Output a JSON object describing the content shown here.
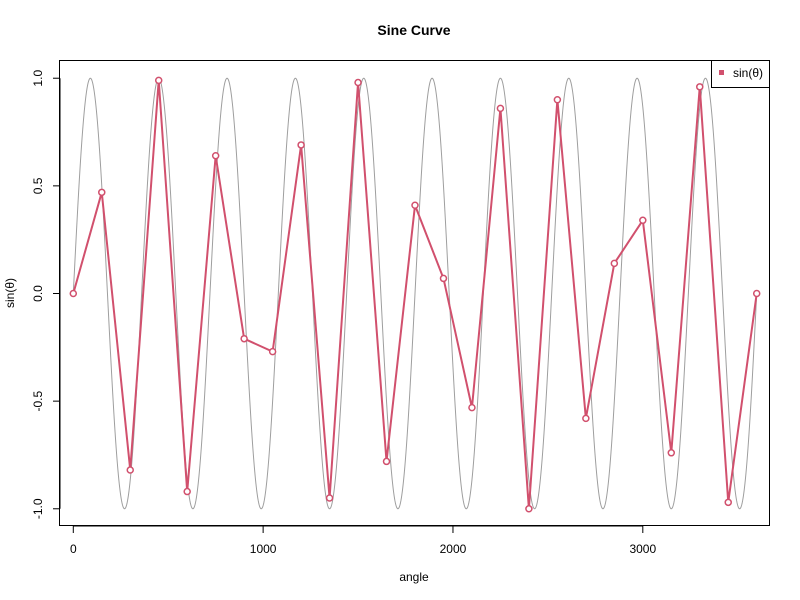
{
  "chart_data": {
    "type": "line",
    "title": "Sine Curve",
    "xlabel": "angle",
    "ylabel": "sin(θ)",
    "xlim": [
      -70,
      3670
    ],
    "ylim": [
      -1.08,
      1.08
    ],
    "x_ticks": [
      0,
      1000,
      2000,
      3000
    ],
    "x_tick_labels": [
      "0",
      "1000",
      "2000",
      "3000"
    ],
    "y_ticks": [
      -1.0,
      -0.5,
      0.0,
      0.5,
      1.0
    ],
    "y_tick_labels": [
      "-1.0",
      "-0.5",
      "0.0",
      "0.5",
      "1.0"
    ],
    "grid": false,
    "legend_position": "top-right",
    "colors": {
      "series": "#d1506d",
      "reference": "#9e9e9e"
    },
    "reference_curve": {
      "function": "sin",
      "x_range": [
        0,
        3600
      ]
    },
    "series": [
      {
        "name": "sin(θ)",
        "x": [
          0,
          150,
          300,
          450,
          600,
          750,
          900,
          1050,
          1200,
          1350,
          1500,
          1650,
          1800,
          1950,
          2100,
          2250,
          2400,
          2550,
          2700,
          2850,
          3000,
          3150,
          3300,
          3450,
          3600
        ],
        "values": [
          0,
          0.47,
          -0.82,
          0.99,
          -0.92,
          0.64,
          -0.21,
          -0.27,
          0.69,
          -0.95,
          0.98,
          -0.78,
          0.41,
          0.07,
          -0.53,
          0.86,
          -1.0,
          0.9,
          -0.58,
          0.14,
          0.34,
          -0.74,
          0.96,
          -0.97,
          0.0
        ]
      }
    ]
  }
}
